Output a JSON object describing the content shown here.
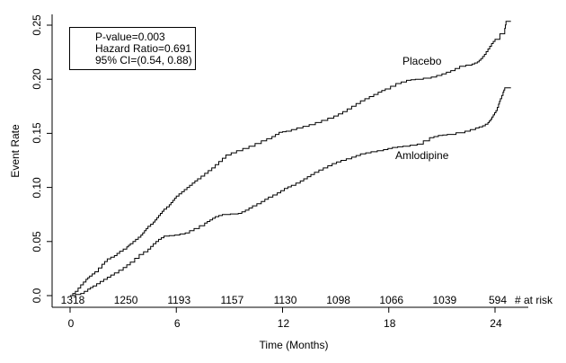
{
  "figure": {
    "background_color": "#ffffff",
    "line_color": "#000000",
    "text_color": "#000000"
  },
  "chart_data": {
    "type": "line",
    "subtype": "kaplan-meier-cumulative-event-step-curves",
    "title": "",
    "xlabel": "Time (Months)",
    "ylabel": "Event Rate",
    "xlim": [
      0,
      25.9
    ],
    "ylim": [
      0,
      0.25
    ],
    "grid": false,
    "legend_position": "labels-on-curves",
    "x_tick_values": [
      0,
      6,
      12,
      18,
      24
    ],
    "x_tick_labels": [
      "0",
      "6",
      "12",
      "18",
      "24"
    ],
    "y_tick_values": [
      0,
      0.05,
      0.1,
      0.15,
      0.2,
      0.25
    ],
    "y_tick_labels": [
      "0.0",
      "0.05",
      "0.10",
      "0.15",
      "0.20",
      "0.25"
    ],
    "annotation": [
      "P-value=0.003",
      "Hazard Ratio=0.691",
      "95% CI=(0.54, 0.88)"
    ],
    "series": [
      {
        "name": "Placebo",
        "points": [
          [
            0,
            0
          ],
          [
            0.3,
            0.004
          ],
          [
            0.6,
            0.01
          ],
          [
            0.9,
            0.015
          ],
          [
            1.1,
            0.018
          ],
          [
            1.4,
            0.022
          ],
          [
            1.8,
            0.029
          ],
          [
            2.1,
            0.034
          ],
          [
            2.5,
            0.037
          ],
          [
            2.8,
            0.041
          ],
          [
            3.2,
            0.045
          ],
          [
            3.4,
            0.048
          ],
          [
            3.7,
            0.052
          ],
          [
            4.0,
            0.056
          ],
          [
            4.2,
            0.06
          ],
          [
            4.4,
            0.064
          ],
          [
            4.7,
            0.068
          ],
          [
            4.9,
            0.072
          ],
          [
            5.1,
            0.076
          ],
          [
            5.3,
            0.08
          ],
          [
            5.6,
            0.084
          ],
          [
            5.8,
            0.088
          ],
          [
            6.0,
            0.092
          ],
          [
            6.3,
            0.096
          ],
          [
            6.6,
            0.1
          ],
          [
            6.9,
            0.104
          ],
          [
            7.2,
            0.108
          ],
          [
            7.6,
            0.113
          ],
          [
            8.0,
            0.118
          ],
          [
            8.4,
            0.124
          ],
          [
            8.8,
            0.13
          ],
          [
            9.4,
            0.134
          ],
          [
            10.1,
            0.138
          ],
          [
            10.8,
            0.143
          ],
          [
            11.4,
            0.147
          ],
          [
            11.8,
            0.151
          ],
          [
            12.2,
            0.152
          ],
          [
            12.8,
            0.155
          ],
          [
            13.5,
            0.158
          ],
          [
            14.2,
            0.162
          ],
          [
            14.9,
            0.166
          ],
          [
            15.4,
            0.17
          ],
          [
            15.9,
            0.175
          ],
          [
            16.4,
            0.18
          ],
          [
            16.9,
            0.184
          ],
          [
            17.4,
            0.188
          ],
          [
            17.8,
            0.191
          ],
          [
            18.4,
            0.196
          ],
          [
            19.0,
            0.199
          ],
          [
            19.5,
            0.2
          ],
          [
            20.4,
            0.202
          ],
          [
            21.0,
            0.205
          ],
          [
            21.5,
            0.208
          ],
          [
            22.0,
            0.212
          ],
          [
            22.7,
            0.214
          ],
          [
            23.0,
            0.216
          ],
          [
            23.2,
            0.219
          ],
          [
            23.4,
            0.223
          ],
          [
            23.6,
            0.228
          ],
          [
            23.8,
            0.233
          ],
          [
            24.0,
            0.237
          ],
          [
            24.55,
            0.247
          ],
          [
            24.62,
            0.2535
          ],
          [
            24.9,
            0.2535
          ]
        ]
      },
      {
        "name": "Amlodipine",
        "points": [
          [
            0,
            0
          ],
          [
            0.6,
            0.002
          ],
          [
            1.0,
            0.006
          ],
          [
            1.3,
            0.009
          ],
          [
            1.7,
            0.013
          ],
          [
            2.1,
            0.017
          ],
          [
            2.5,
            0.021
          ],
          [
            3.0,
            0.026
          ],
          [
            3.4,
            0.031
          ],
          [
            3.9,
            0.038
          ],
          [
            4.4,
            0.043
          ],
          [
            4.7,
            0.048
          ],
          [
            5.0,
            0.052
          ],
          [
            5.3,
            0.055
          ],
          [
            5.9,
            0.056
          ],
          [
            6.5,
            0.058
          ],
          [
            7.0,
            0.062
          ],
          [
            7.6,
            0.067
          ],
          [
            7.9,
            0.07
          ],
          [
            8.2,
            0.073
          ],
          [
            8.6,
            0.075
          ],
          [
            9.5,
            0.076
          ],
          [
            9.9,
            0.079
          ],
          [
            10.3,
            0.083
          ],
          [
            10.8,
            0.087
          ],
          [
            11.2,
            0.091
          ],
          [
            11.7,
            0.095
          ],
          [
            12.1,
            0.099
          ],
          [
            12.5,
            0.102
          ],
          [
            13.0,
            0.106
          ],
          [
            13.4,
            0.11
          ],
          [
            13.8,
            0.114
          ],
          [
            14.3,
            0.118
          ],
          [
            14.8,
            0.122
          ],
          [
            15.3,
            0.125
          ],
          [
            15.9,
            0.128
          ],
          [
            16.4,
            0.131
          ],
          [
            17.0,
            0.133
          ],
          [
            17.7,
            0.135
          ],
          [
            18.2,
            0.137
          ],
          [
            18.8,
            0.138
          ],
          [
            19.6,
            0.14
          ],
          [
            20.3,
            0.146
          ],
          [
            20.8,
            0.148
          ],
          [
            21.3,
            0.149
          ],
          [
            22.3,
            0.152
          ],
          [
            22.9,
            0.155
          ],
          [
            23.3,
            0.157
          ],
          [
            23.6,
            0.16
          ],
          [
            23.75,
            0.163
          ],
          [
            23.9,
            0.167
          ],
          [
            24.05,
            0.171
          ],
          [
            24.2,
            0.177
          ],
          [
            24.3,
            0.182
          ],
          [
            24.45,
            0.188
          ],
          [
            24.55,
            0.192
          ],
          [
            24.9,
            0.192
          ]
        ]
      }
    ],
    "at_risk": {
      "label": "# at risk",
      "times": [
        0,
        3,
        6,
        9,
        12,
        15,
        18,
        21,
        24
      ],
      "counts": [
        1318,
        1250,
        1193,
        1157,
        1130,
        1098,
        1066,
        1039,
        594
      ]
    }
  }
}
